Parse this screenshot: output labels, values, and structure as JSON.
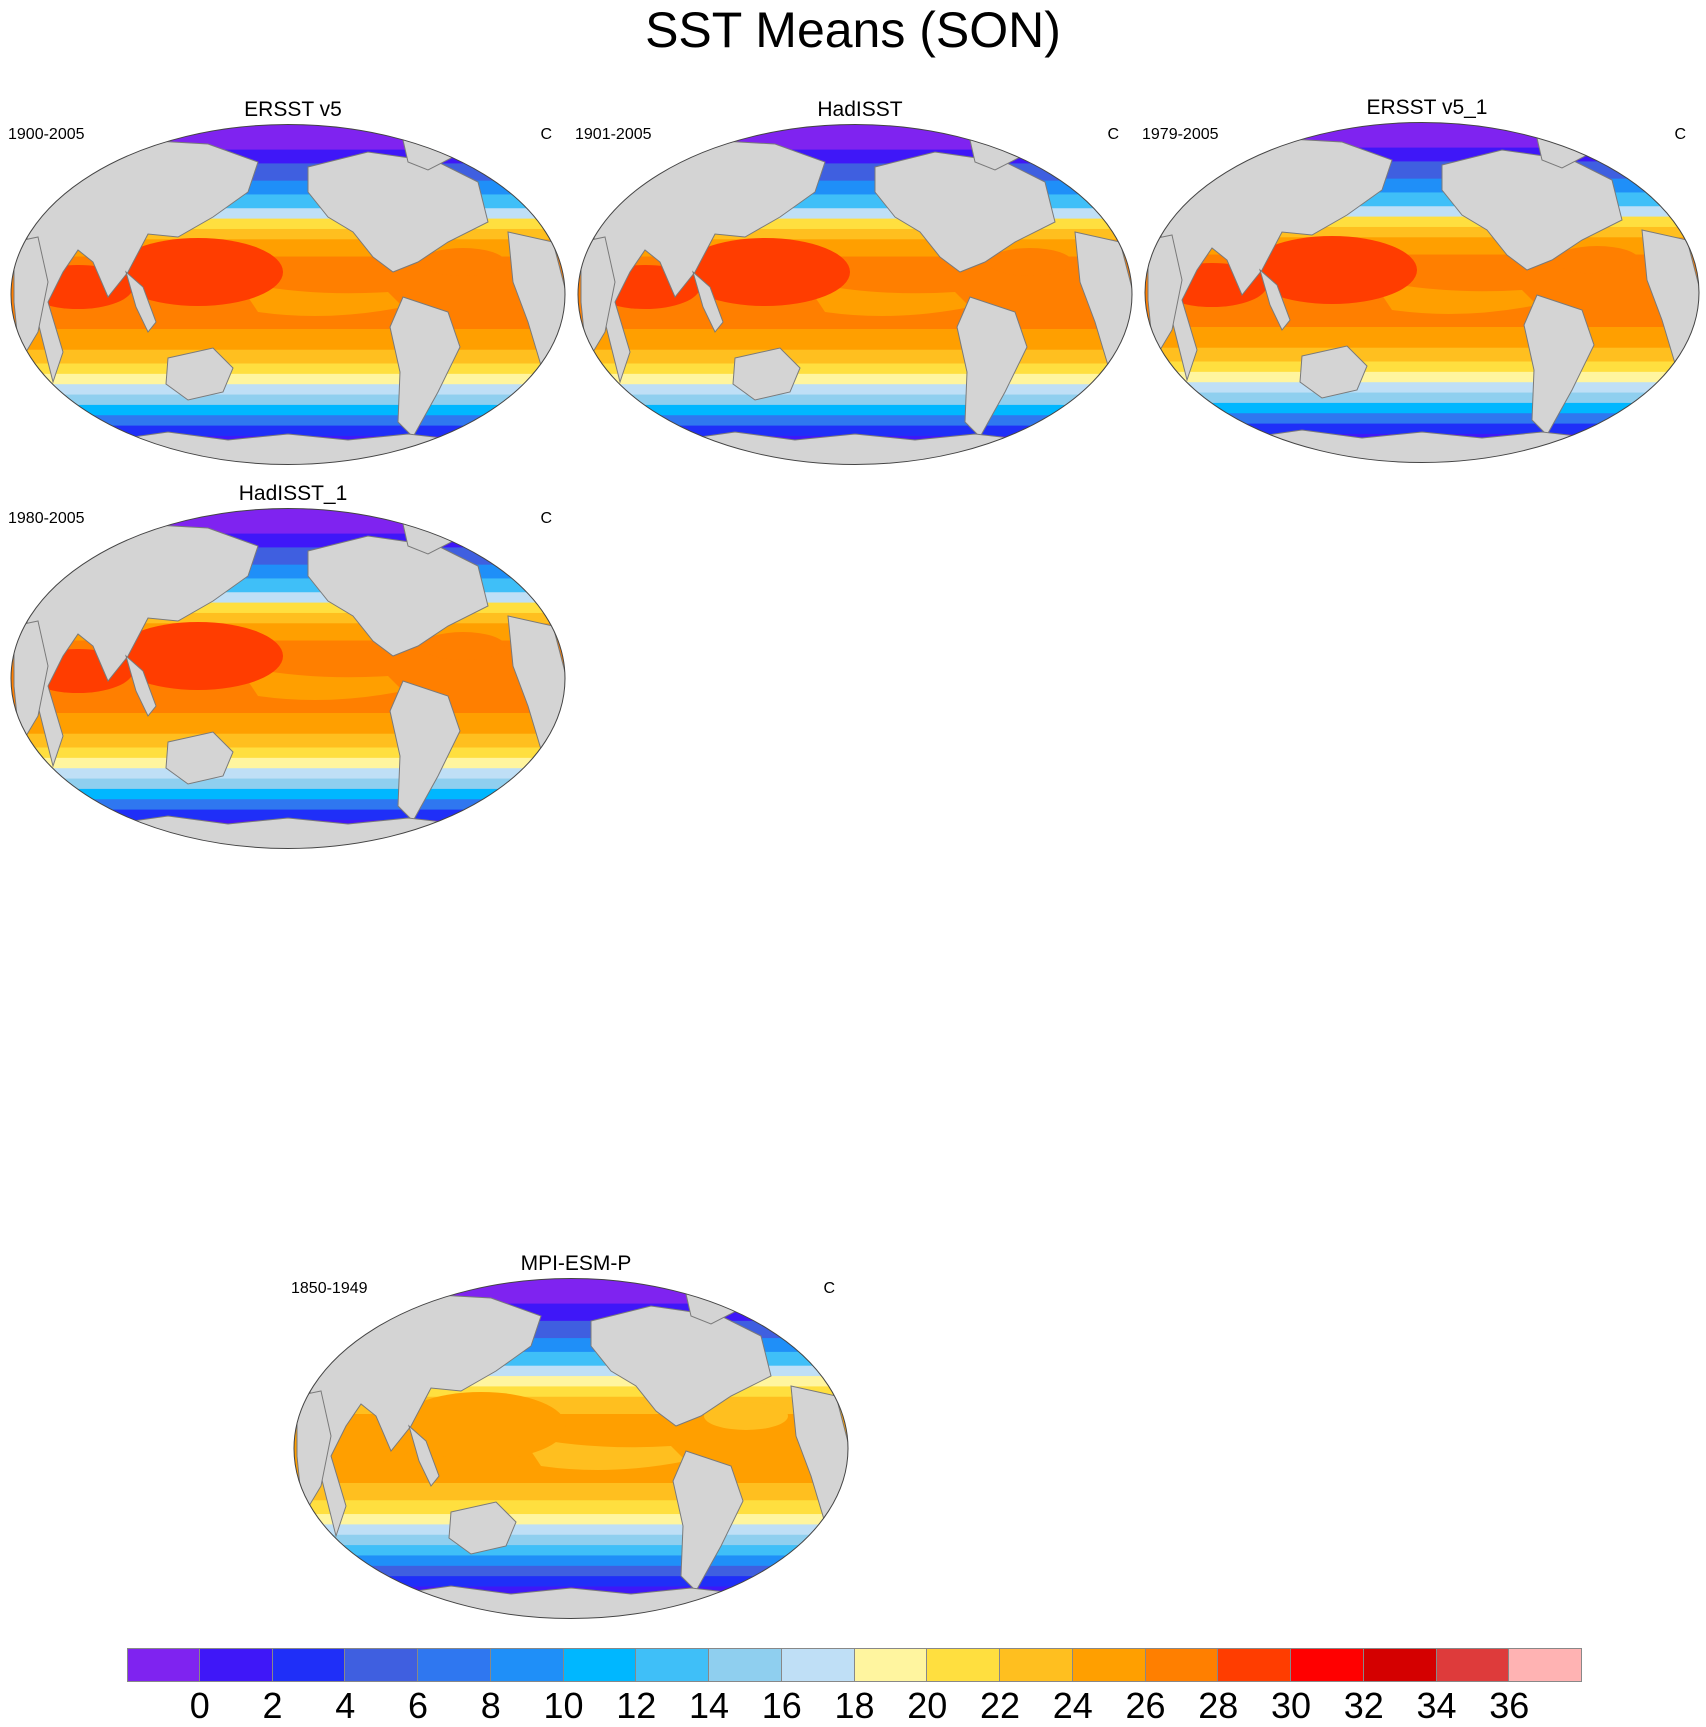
{
  "title": "SST Means (SON)",
  "units": "C",
  "panels": [
    {
      "title": "ERSST v5",
      "period": "1900-2005",
      "units": "C",
      "warm_pool": "#ff3d00",
      "tropic_band": "#ff7f00"
    },
    {
      "title": "HadISST",
      "period": "1901-2005",
      "units": "C",
      "warm_pool": "#ff3d00",
      "tropic_band": "#ff7f00"
    },
    {
      "title": "ERSST v5_1",
      "period": "1979-2005",
      "units": "C",
      "warm_pool": "#ff3d00",
      "tropic_band": "#ff7f00"
    },
    {
      "title": "HadISST_1",
      "period": "1980-2005",
      "units": "C",
      "warm_pool": "#ff3d00",
      "tropic_band": "#ff7f00"
    },
    {
      "title": "MPI-ESM-P",
      "period": "1850-1949",
      "units": "C",
      "warm_pool": "#ff9f00",
      "tropic_band": "#ffbf1f"
    }
  ],
  "colorbar": {
    "colors": [
      "#7f23f0",
      "#3f17f8",
      "#1f2ff8",
      "#3f5fe0",
      "#2f77f0",
      "#1f8ff8",
      "#00b7ff",
      "#3fbff8",
      "#8fcfef",
      "#bfdff6",
      "#fff59f",
      "#ffdf3f",
      "#ffbf1f",
      "#ff9f00",
      "#ff7f00",
      "#ff3d00",
      "#ff0000",
      "#d40000",
      "#de3b3b",
      "#ffb3b3"
    ],
    "labels": [
      "0",
      "2",
      "4",
      "6",
      "8",
      "10",
      "12",
      "14",
      "16",
      "18",
      "20",
      "22",
      "24",
      "26",
      "28",
      "30",
      "32",
      "34",
      "36"
    ]
  },
  "chart_data": {
    "type": "heatmap",
    "title": "SST Means (SON)",
    "units": "C",
    "projection": "Robinson-like global",
    "colorbar_levels": [
      0,
      2,
      4,
      6,
      8,
      10,
      12,
      14,
      16,
      18,
      20,
      22,
      24,
      26,
      28,
      30,
      32,
      34,
      36
    ],
    "panels": [
      {
        "name": "ERSST v5",
        "period": "1900-2005",
        "tropical_max_approx": 29
      },
      {
        "name": "HadISST",
        "period": "1901-2005",
        "tropical_max_approx": 29
      },
      {
        "name": "ERSST v5_1",
        "period": "1979-2005",
        "tropical_max_approx": 29
      },
      {
        "name": "HadISST_1",
        "period": "1980-2005",
        "tropical_max_approx": 29
      },
      {
        "name": "MPI-ESM-P",
        "period": "1850-1949",
        "tropical_max_approx": 27
      }
    ]
  }
}
